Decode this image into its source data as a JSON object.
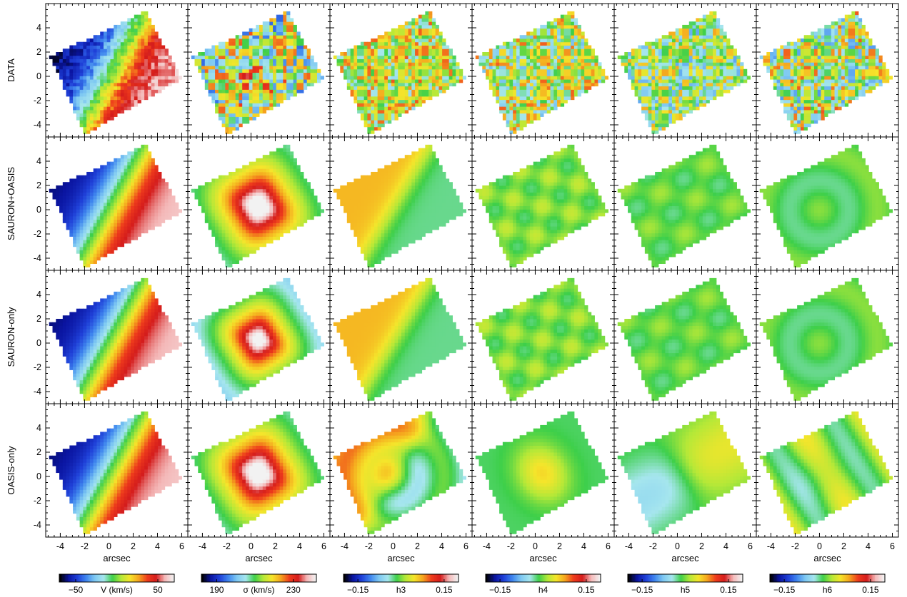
{
  "chart_data": {
    "type": "heatmap",
    "layout": {
      "rows": 4,
      "columns": 6
    },
    "row_labels": [
      "DATA",
      "SAURON+OASIS",
      "SAURON-only",
      "OASIS-only"
    ],
    "xlabel": "arcsec",
    "ylabel": "",
    "xlim": [
      -5.2,
      6.5
    ],
    "ylim": [
      -5,
      6
    ],
    "xticks": [
      -4,
      -2,
      0,
      2,
      4,
      6
    ],
    "yticks": [
      -4,
      -2,
      0,
      2,
      4
    ],
    "columns": [
      {
        "quantity": "V (km/s)",
        "colorbar_ticks": [
          -50,
          50
        ],
        "colorbar_tick_labels": [
          "−50",
          "50"
        ],
        "range": [
          -70,
          70
        ]
      },
      {
        "quantity": "σ (km/s)",
        "colorbar_ticks": [
          190,
          230
        ],
        "colorbar_tick_labels": [
          "190",
          "230"
        ],
        "range": [
          182,
          242
        ]
      },
      {
        "quantity": "h3",
        "colorbar_ticks": [
          -0.15,
          0.15
        ],
        "colorbar_tick_labels": [
          "−0.15",
          "0.15"
        ],
        "range": [
          -0.2,
          0.2
        ]
      },
      {
        "quantity": "h4",
        "colorbar_ticks": [
          -0.15,
          0.15
        ],
        "colorbar_tick_labels": [
          "−0.15",
          "0.15"
        ],
        "range": [
          -0.2,
          0.2
        ]
      },
      {
        "quantity": "h5",
        "colorbar_ticks": [
          -0.15,
          0.15
        ],
        "colorbar_tick_labels": [
          "−0.15",
          "0.15"
        ],
        "range": [
          -0.2,
          0.2
        ]
      },
      {
        "quantity": "h6",
        "colorbar_ticks": [
          -0.15,
          0.15
        ],
        "colorbar_tick_labels": [
          "−0.15",
          "0.15"
        ],
        "range": [
          -0.2,
          0.2
        ]
      }
    ],
    "field_of_view_corners": [
      [
        -4.8,
        1.6
      ],
      [
        3.0,
        5.4
      ],
      [
        6.0,
        -0.2
      ],
      [
        -2.0,
        -4.8
      ]
    ],
    "colormap": [
      "#000000",
      "#0a14a0",
      "#1f40d8",
      "#3f86ee",
      "#7fc9f2",
      "#a6e6ee",
      "#3dcf4a",
      "#b4e838",
      "#f5e52b",
      "#f5a51e",
      "#ee3b1c",
      "#d41c1c",
      "#f4b8b8",
      "#f2f2f2"
    ],
    "grid": false,
    "legend": "none"
  }
}
